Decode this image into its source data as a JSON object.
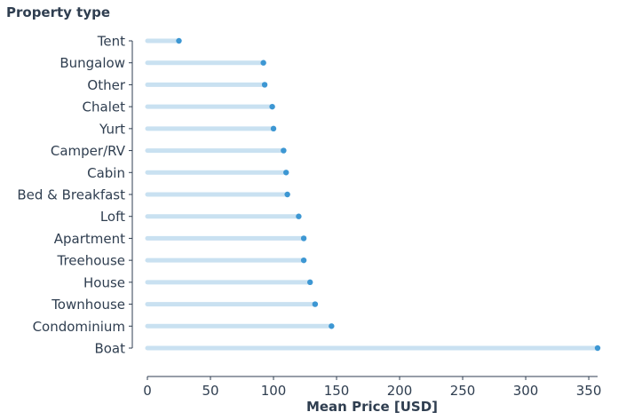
{
  "chart_data": {
    "type": "lollipop",
    "orientation": "horizontal",
    "title": "",
    "ylabel": "Property type",
    "xlabel": "Mean Price [USD]",
    "xlim": [
      0,
      357
    ],
    "xticks": [
      0,
      50,
      100,
      150,
      200,
      250,
      300,
      350
    ],
    "grid": false,
    "categories": [
      "Tent",
      "Bungalow",
      "Other",
      "Chalet",
      "Yurt",
      "Camper/RV",
      "Cabin",
      "Bed & Breakfast",
      "Loft",
      "Apartment",
      "Treehouse",
      "House",
      "Townhouse",
      "Condominium",
      "Boat"
    ],
    "values": [
      25,
      92,
      93,
      99,
      100,
      108,
      110,
      111,
      120,
      124,
      124,
      129,
      133,
      146,
      357
    ],
    "colors": {
      "stem": "#c9e1f1",
      "marker": "#3d97d3",
      "text": "#2f3e50"
    }
  }
}
